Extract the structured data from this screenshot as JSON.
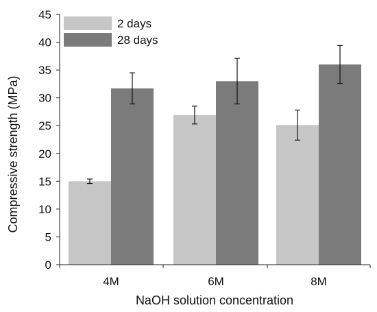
{
  "chart_data": {
    "type": "bar",
    "xlabel": "NaOH solution concentration",
    "ylabel": "Compressive strength (MPa)",
    "ylim": [
      0,
      45
    ],
    "yticks": [
      0,
      5,
      10,
      15,
      20,
      25,
      30,
      35,
      40,
      45
    ],
    "categories": [
      "4M",
      "6M",
      "8M"
    ],
    "legend_position": "top-left",
    "grid": false,
    "series": [
      {
        "name": "2 days",
        "color": "#c6c6c6",
        "values": [
          15.0,
          26.9,
          25.1
        ],
        "error": [
          0.4,
          1.6,
          2.7
        ]
      },
      {
        "name": "28 days",
        "color": "#7b7b7b",
        "values": [
          31.7,
          33.0,
          36.0
        ],
        "error": [
          2.8,
          4.1,
          3.4
        ]
      }
    ]
  }
}
